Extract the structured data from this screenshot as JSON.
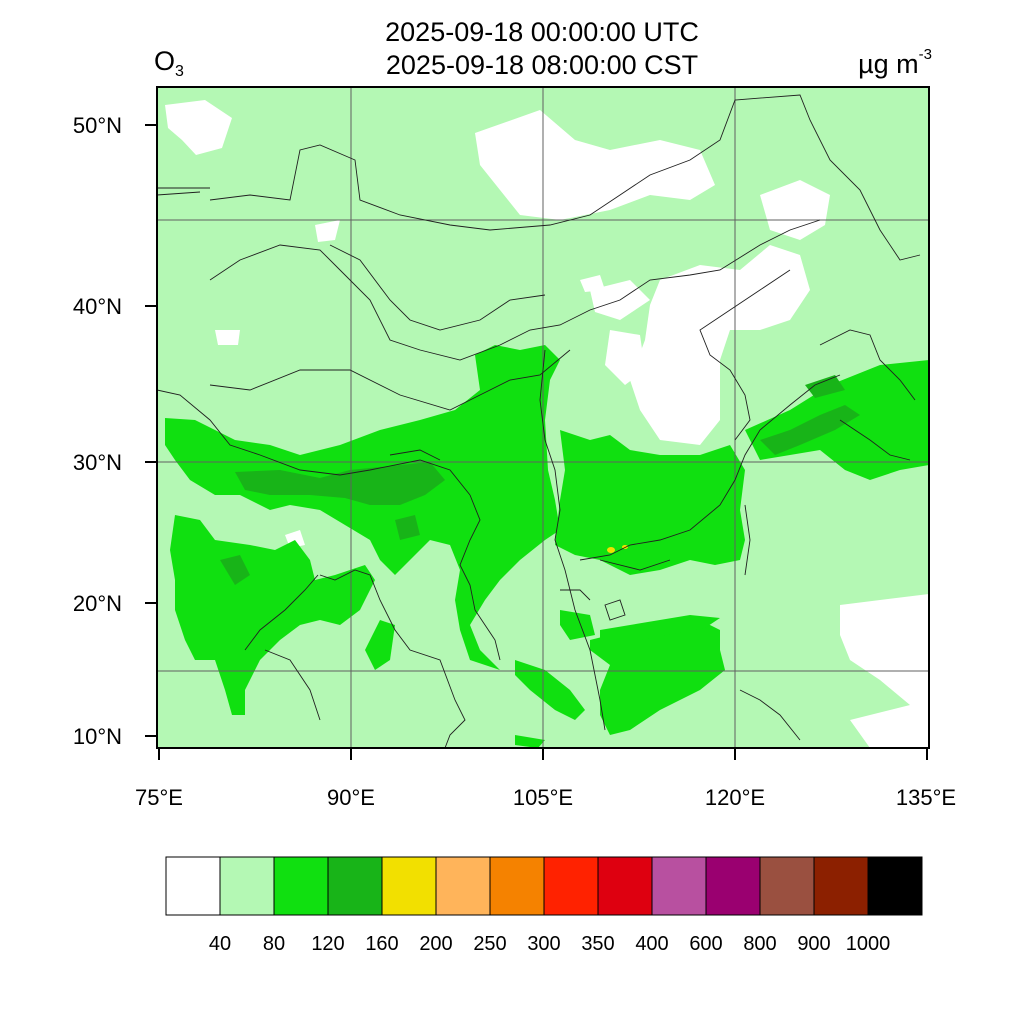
{
  "header": {
    "title_utc": "2025-09-18 00:00:00 UTC",
    "title_cst": "2025-09-18 08:00:00 CST",
    "species_main": "O",
    "species_sub": "3",
    "unit_main": "µg m",
    "unit_sup": "-3"
  },
  "map": {
    "lon_labels": [
      "75°E",
      "90°E",
      "105°E",
      "120°E",
      "135°E"
    ],
    "lat_labels": [
      "50°N",
      "40°N",
      "30°N",
      "20°N",
      "10°N"
    ]
  },
  "colorbar": {
    "colors": [
      "#ffffff",
      "#b4f8b4",
      "#10e010",
      "#18b418",
      "#f2e000",
      "#ffb45a",
      "#f58200",
      "#ff2200",
      "#de0010",
      "#b850a0",
      "#9a0070",
      "#9a5040",
      "#8c2000",
      "#000000"
    ],
    "labels": [
      "40",
      "80",
      "120",
      "160",
      "200",
      "250",
      "300",
      "350",
      "400",
      "600",
      "800",
      "900",
      "1000"
    ]
  }
}
